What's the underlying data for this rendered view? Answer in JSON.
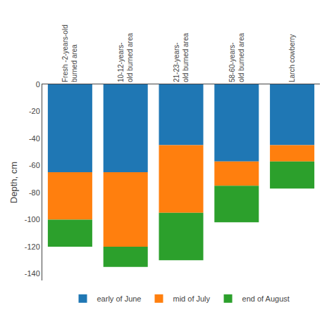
{
  "chart_data": {
    "type": "bar",
    "stacked": true,
    "categories": [
      "Fresh -2-years-old\nburned area",
      "10-12-years-\nold burned area",
      "21-23-years-\nold burned area",
      "58-60-years-\nold burned area",
      "Larch cowberry"
    ],
    "series": [
      {
        "name": "early of June",
        "values": [
          -65,
          -65,
          -45,
          -57,
          -45
        ]
      },
      {
        "name": "mid of July",
        "values": [
          -35,
          -55,
          -50,
          -18,
          -12
        ]
      },
      {
        "name": "end of August",
        "values": [
          -20,
          -15,
          -35,
          -27,
          -20
        ]
      }
    ],
    "ylabel": "Depth, cm",
    "ylim": [
      -145,
      0
    ],
    "yticks": [
      0,
      -20,
      -40,
      -60,
      -80,
      -100,
      -120,
      -140
    ],
    "grid": false,
    "legend": "bottom"
  }
}
